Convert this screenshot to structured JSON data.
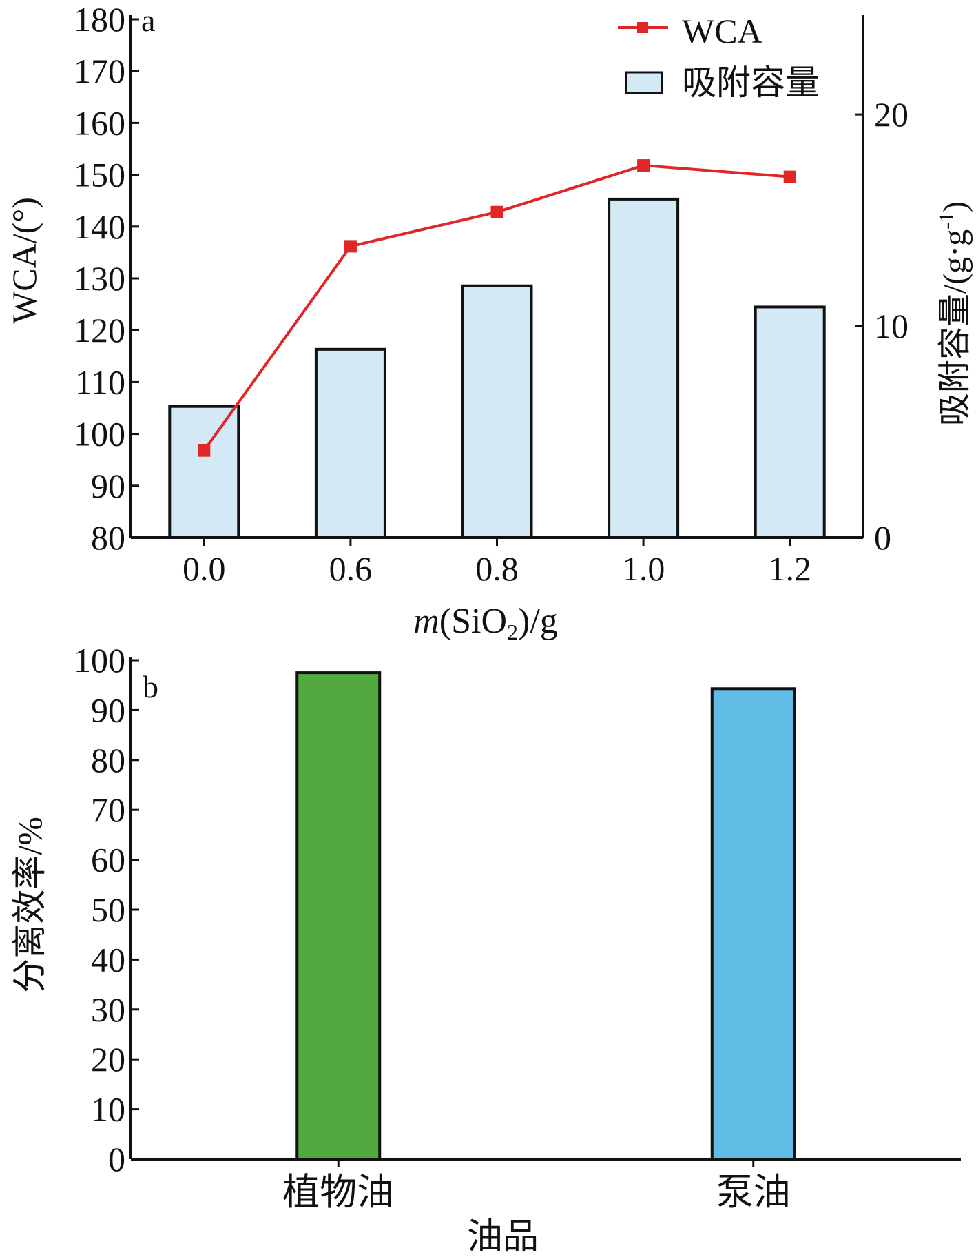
{
  "chart_data": [
    {
      "panel_label": "a",
      "type": "bar",
      "categories": [
        "0.0",
        "0.6",
        "0.8",
        "1.0",
        "1.2"
      ],
      "xlabel": {
        "italic_prefix": "m",
        "before_sub": "(SiO",
        "sub": "2",
        "after_sub": ")/g"
      },
      "ylabel": "WCA/(°)",
      "y2label": {
        "main": "吸附容量/(g·g",
        "sup": "-1",
        "end": ")"
      },
      "ylim": [
        80,
        180
      ],
      "y_ticks": [
        80,
        90,
        100,
        110,
        120,
        130,
        140,
        150,
        160,
        170,
        180
      ],
      "y2lim": [
        0,
        24.5
      ],
      "y2_ticks": [
        0,
        10,
        20
      ],
      "series": [
        {
          "name": "吸附容量",
          "kind": "bar",
          "axis": "right",
          "values": [
            6.2,
            8.9,
            11.9,
            16.0,
            10.9
          ],
          "color": "#d3e9f6"
        },
        {
          "name": "WCA",
          "kind": "line",
          "axis": "left",
          "values": [
            96.8,
            136.2,
            142.8,
            151.8,
            149.6
          ],
          "color": "#e02727"
        }
      ],
      "legend_position": "top-right",
      "grid": false
    },
    {
      "panel_label": "b",
      "type": "bar",
      "categories": [
        "植物油",
        "泵油"
      ],
      "values": [
        97.5,
        94.3
      ],
      "colors": [
        "#52a93f",
        "#61bde6"
      ],
      "xlabel": "油品",
      "ylabel": "分离效率/%",
      "ylim": [
        0,
        100
      ],
      "y_ticks": [
        0,
        10,
        20,
        30,
        40,
        50,
        60,
        70,
        80,
        90,
        100
      ],
      "grid": false
    }
  ]
}
